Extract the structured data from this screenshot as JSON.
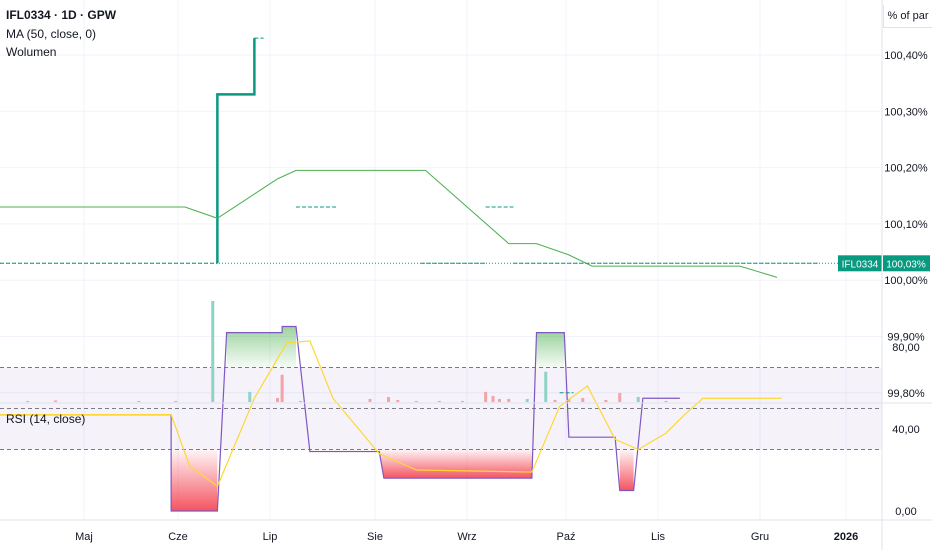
{
  "header": {
    "symbol_line": "IFL0334 · 1D · GPW",
    "ma_label": "MA (50, close, 0)",
    "volume_label": "Wolumen",
    "rsi_label": "RSI (14, close)",
    "unit_label": "% of par"
  },
  "colors": {
    "up": "#089981",
    "down": "#f23645",
    "ma": "#4caf50",
    "rsi_line": "#7e57c2",
    "rsi_ma": "#fdd835",
    "vol_up": "#8ed3c5",
    "vol_down": "#f4a4a8",
    "grid": "#f0f3fa",
    "axis_text": "#131722"
  },
  "chart_data": [
    {
      "type": "line",
      "title": "IFL0334 · 1D · GPW",
      "ylabel": "% of par",
      "x_ticks": [
        "Maj",
        "Cze",
        "Lip",
        "Sie",
        "Wrz",
        "Paź",
        "Lis",
        "Gru",
        "2026"
      ],
      "y_ticks": [
        "99,80%",
        "99,90%",
        "100,00%",
        "100,10%",
        "100,20%",
        "100,30%",
        "100,40%"
      ],
      "ylim": [
        99.73,
        100.48
      ],
      "last_price": {
        "label": "IFL0334",
        "value": "100,03%",
        "y": 100.03
      },
      "price_trace": [
        {
          "m": 2.35,
          "y": 100.03
        },
        {
          "m": 2.35,
          "y": 100.33
        },
        {
          "m": 2.45,
          "y": 100.33
        },
        {
          "m": 2.75,
          "y": 100.33
        },
        {
          "m": 2.75,
          "y": 100.43
        }
      ],
      "price_dashes": [
        {
          "m0": 0.0,
          "m1": 2.35,
          "y": 100.03
        },
        {
          "m0": 2.45,
          "m1": 2.75,
          "y": 100.33
        },
        {
          "m0": 2.75,
          "m1": 2.85,
          "y": 100.43
        },
        {
          "m0": 3.2,
          "m1": 3.65,
          "y": 100.13
        },
        {
          "m0": 4.55,
          "m1": 5.25,
          "y": 100.03
        },
        {
          "m0": 5.25,
          "m1": 5.55,
          "y": 100.13
        },
        {
          "m0": 5.55,
          "m1": 6.2,
          "y": 100.03
        },
        {
          "m0": 6.05,
          "m1": 6.2,
          "y": 99.8
        },
        {
          "m0": 6.2,
          "m1": 8.85,
          "y": 100.03
        }
      ],
      "series": [
        {
          "name": "MA (50, close, 0)",
          "values": [
            {
              "m": 0.0,
              "y": 100.13
            },
            {
              "m": 2.0,
              "y": 100.13
            },
            {
              "m": 2.35,
              "y": 100.11
            },
            {
              "m": 3.0,
              "y": 100.18
            },
            {
              "m": 3.2,
              "y": 100.195
            },
            {
              "m": 4.0,
              "y": 100.195
            },
            {
              "m": 4.6,
              "y": 100.195
            },
            {
              "m": 5.5,
              "y": 100.065
            },
            {
              "m": 5.8,
              "y": 100.065
            },
            {
              "m": 6.15,
              "y": 100.045
            },
            {
              "m": 6.4,
              "y": 100.025
            },
            {
              "m": 7.5,
              "y": 100.025
            },
            {
              "m": 8.0,
              "y": 100.025
            },
            {
              "m": 8.4,
              "y": 100.005
            }
          ]
        }
      ]
    },
    {
      "type": "bar",
      "title": "Wolumen",
      "bars": [
        {
          "m": 0.3,
          "v": 1,
          "dir": "down"
        },
        {
          "m": 0.6,
          "v": 1.5,
          "dir": "down"
        },
        {
          "m": 1.5,
          "v": 1,
          "dir": "down"
        },
        {
          "m": 1.9,
          "v": 1,
          "dir": "down"
        },
        {
          "m": 2.3,
          "v": 100,
          "dir": "up"
        },
        {
          "m": 2.7,
          "v": 10,
          "dir": "up"
        },
        {
          "m": 3.0,
          "v": 4,
          "dir": "down"
        },
        {
          "m": 3.05,
          "v": 27,
          "dir": "down"
        },
        {
          "m": 3.25,
          "v": 1,
          "dir": "down"
        },
        {
          "m": 4.0,
          "v": 3,
          "dir": "down"
        },
        {
          "m": 4.2,
          "v": 5,
          "dir": "down"
        },
        {
          "m": 4.3,
          "v": 2,
          "dir": "down"
        },
        {
          "m": 4.5,
          "v": 1,
          "dir": "down"
        },
        {
          "m": 4.75,
          "v": 1,
          "dir": "down"
        },
        {
          "m": 5.0,
          "v": 1,
          "dir": "down"
        },
        {
          "m": 5.25,
          "v": 10,
          "dir": "down"
        },
        {
          "m": 5.33,
          "v": 6,
          "dir": "down"
        },
        {
          "m": 5.4,
          "v": 3,
          "dir": "down"
        },
        {
          "m": 5.5,
          "v": 3,
          "dir": "down"
        },
        {
          "m": 5.7,
          "v": 3,
          "dir": "up"
        },
        {
          "m": 5.9,
          "v": 30,
          "dir": "up"
        },
        {
          "m": 6.0,
          "v": 2,
          "dir": "down"
        },
        {
          "m": 6.15,
          "v": 3,
          "dir": "down"
        },
        {
          "m": 6.3,
          "v": 4,
          "dir": "down"
        },
        {
          "m": 6.55,
          "v": 2,
          "dir": "down"
        },
        {
          "m": 6.7,
          "v": 9,
          "dir": "down"
        },
        {
          "m": 6.9,
          "v": 5,
          "dir": "up"
        },
        {
          "m": 7.2,
          "v": 1,
          "dir": "down"
        }
      ]
    },
    {
      "type": "line",
      "title": "RSI (14, close)",
      "y_ticks": [
        "0,00",
        "40,00",
        "80,00"
      ],
      "ylim": [
        -5,
        90
      ],
      "bands": {
        "upper": 70,
        "middle": 50,
        "lower": 30
      },
      "series": [
        {
          "name": "RSI",
          "color_key": "rsi_line",
          "values": [
            {
              "m": 0.0,
              "y": 47
            },
            {
              "m": 1.85,
              "y": 47
            },
            {
              "m": 1.85,
              "y": 0
            },
            {
              "m": 2.35,
              "y": 0
            },
            {
              "m": 2.45,
              "y": 87
            },
            {
              "m": 3.05,
              "y": 87
            },
            {
              "m": 3.05,
              "y": 90
            },
            {
              "m": 3.2,
              "y": 90
            },
            {
              "m": 3.35,
              "y": 29
            },
            {
              "m": 4.1,
              "y": 29
            },
            {
              "m": 4.15,
              "y": 16
            },
            {
              "m": 5.75,
              "y": 16
            },
            {
              "m": 5.8,
              "y": 87
            },
            {
              "m": 6.1,
              "y": 87
            },
            {
              "m": 6.15,
              "y": 36
            },
            {
              "m": 6.65,
              "y": 36
            },
            {
              "m": 6.7,
              "y": 10
            },
            {
              "m": 6.85,
              "y": 10
            },
            {
              "m": 6.95,
              "y": 55
            },
            {
              "m": 7.35,
              "y": 55
            }
          ]
        },
        {
          "name": "RSI MA",
          "color_key": "rsi_ma",
          "values": [
            {
              "m": 0.0,
              "y": 47
            },
            {
              "m": 1.85,
              "y": 47
            },
            {
              "m": 2.05,
              "y": 22
            },
            {
              "m": 2.35,
              "y": 12
            },
            {
              "m": 2.75,
              "y": 55
            },
            {
              "m": 3.1,
              "y": 82
            },
            {
              "m": 3.35,
              "y": 83
            },
            {
              "m": 3.6,
              "y": 55
            },
            {
              "m": 4.1,
              "y": 28
            },
            {
              "m": 4.5,
              "y": 20
            },
            {
              "m": 5.75,
              "y": 19
            },
            {
              "m": 6.05,
              "y": 51
            },
            {
              "m": 6.35,
              "y": 61
            },
            {
              "m": 6.65,
              "y": 35
            },
            {
              "m": 6.9,
              "y": 30
            },
            {
              "m": 7.2,
              "y": 38
            },
            {
              "m": 7.4,
              "y": 47
            },
            {
              "m": 7.6,
              "y": 55
            },
            {
              "m": 8.45,
              "y": 55
            }
          ]
        }
      ]
    }
  ]
}
